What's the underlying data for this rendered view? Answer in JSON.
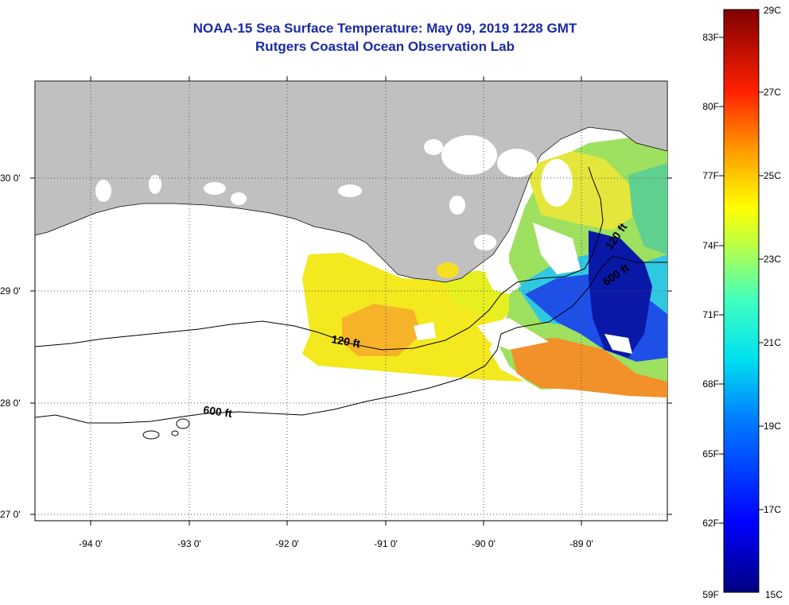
{
  "title": {
    "line1": "NOAA-15 Sea Surface Temperature:  May 09, 2019 1228 GMT",
    "line2": "Rutgers Coastal Ocean Observation Lab"
  },
  "map": {
    "lat_labels": [
      {
        "value": 30,
        "text": "30 0'"
      },
      {
        "value": 29,
        "text": "29 0'"
      },
      {
        "value": 28,
        "text": "28 0'"
      },
      {
        "value": 27,
        "text": "27 0'"
      }
    ],
    "lon_labels": [
      {
        "value": -94,
        "text": "-94 0'"
      },
      {
        "value": -93,
        "text": "-93 0'"
      },
      {
        "value": -92,
        "text": "-92 0'"
      },
      {
        "value": -91,
        "text": "-91 0'"
      },
      {
        "value": -90,
        "text": "-90 0'"
      },
      {
        "value": -89,
        "text": "-89 0'"
      }
    ],
    "contour_labels": {
      "c120_west": "120 ft",
      "c600_west": "600 ft",
      "c120_east": "120 ft",
      "c600_east": "600 ft"
    },
    "colors": {
      "land": "#c0c0c0",
      "ocean": "#ffffff",
      "title": "#1a2aa8"
    }
  },
  "colorbar": {
    "fahrenheit": [
      "83F",
      "80F",
      "77F",
      "74F",
      "71F",
      "68F",
      "65F",
      "62F",
      "59F"
    ],
    "celsius": [
      "29C",
      "27C",
      "25C",
      "23C",
      "21C",
      "19C",
      "17C",
      "15C"
    ],
    "min_c": 15,
    "max_c": 29
  }
}
